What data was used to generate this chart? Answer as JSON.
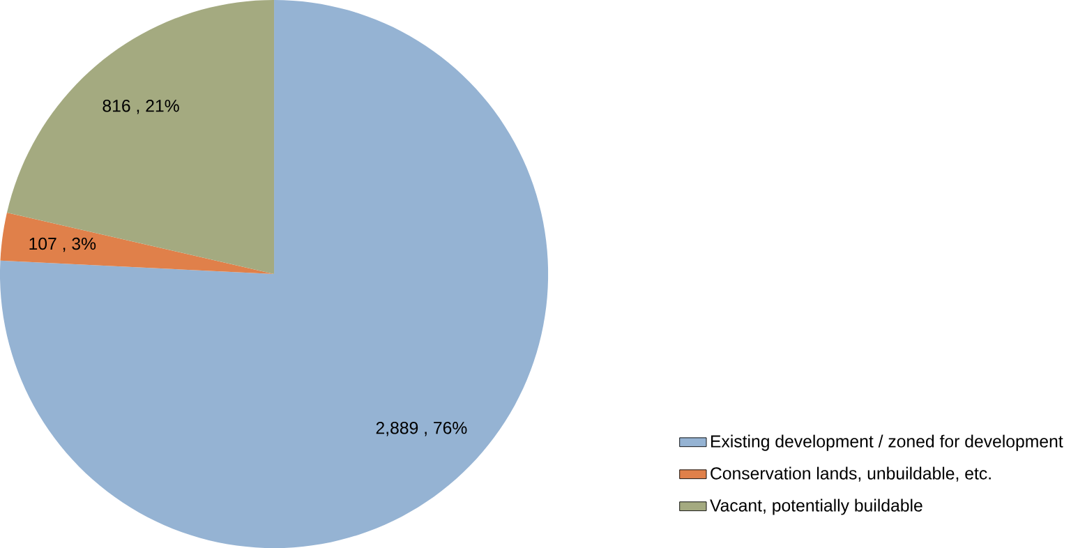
{
  "chart_data": {
    "type": "pie",
    "categories": [
      "Existing development / zoned for development",
      "Conservation lands, unbuildable, etc.",
      "Vacant, potentially buildable"
    ],
    "values": [
      2889,
      107,
      816
    ],
    "colors": [
      "#95b3d3",
      "#e0804a",
      "#a4aa80"
    ],
    "value_labels": [
      "2,889 , 76%",
      "107 , 3%",
      "816 , 21%"
    ],
    "legend": "bottom right"
  }
}
